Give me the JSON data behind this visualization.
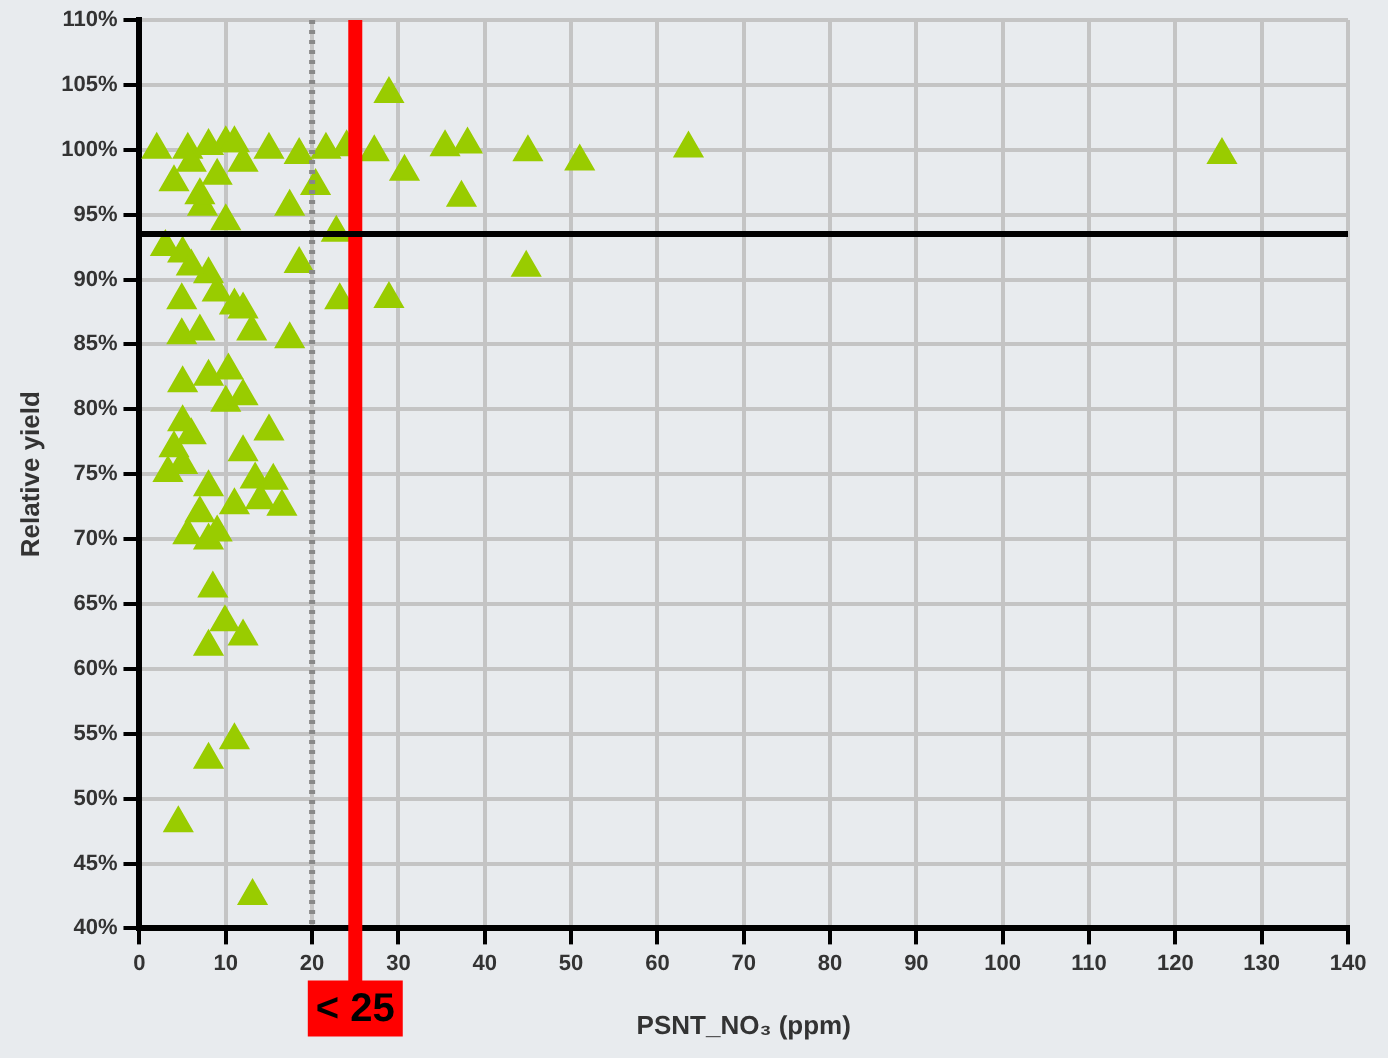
{
  "chart_data": {
    "type": "scatter",
    "xlabel": "PSNT_NO₃ (ppm)",
    "ylabel": "Relative yield",
    "marker": "triangle",
    "grid": true,
    "legend": false,
    "xlim": [
      0,
      140
    ],
    "xticks": [
      0,
      10,
      20,
      30,
      40,
      50,
      60,
      70,
      80,
      90,
      100,
      110,
      120,
      130,
      140
    ],
    "ylim": [
      40,
      110
    ],
    "yticks": [
      {
        "value": 40,
        "label": "40%"
      },
      {
        "value": 45,
        "label": "45%"
      },
      {
        "value": 50,
        "label": "50%"
      },
      {
        "value": 55,
        "label": "55%"
      },
      {
        "value": 60,
        "label": "60%"
      },
      {
        "value": 65,
        "label": "65%"
      },
      {
        "value": 70,
        "label": "70%"
      },
      {
        "value": 75,
        "label": "75%"
      },
      {
        "value": 80,
        "label": "80%"
      },
      {
        "value": 85,
        "label": "85%"
      },
      {
        "value": 90,
        "label": "90%"
      },
      {
        "value": 95,
        "label": "95%"
      },
      {
        "value": 100,
        "label": "100%"
      },
      {
        "value": 105,
        "label": "105%"
      },
      {
        "value": 110,
        "label": "110%"
      }
    ],
    "ref_lines": [
      {
        "axis": "x",
        "value": 20,
        "color": "#888888",
        "line_style": "dotted"
      },
      {
        "axis": "x",
        "value": 25,
        "color": "#ff0000",
        "line_style": "solid",
        "label": "< 25"
      },
      {
        "axis": "y",
        "value": 93.5,
        "color": "#000000",
        "line_style": "solid"
      }
    ],
    "series": [
      {
        "color": "#99cc00",
        "x": [
          28.9,
          2,
          5.6,
          8,
          10,
          15,
          18.5,
          21.6,
          24,
          27.2,
          35.4,
          38,
          45,
          51,
          63.6,
          30.7,
          37.3,
          125.4,
          7.3,
          17.4,
          20.4,
          22.8,
          44.8,
          18.5,
          23.2,
          28.9,
          4.9,
          4.9,
          12,
          17.4,
          8,
          5,
          10.3,
          5,
          8,
          15,
          12,
          5,
          3.3,
          13.4,
          11,
          5.6,
          8,
          8.5,
          9.9,
          8,
          12,
          11,
          8,
          4.5,
          13.1,
          4,
          6,
          9,
          11,
          7,
          10,
          12,
          3,
          6,
          9,
          11,
          13,
          7,
          10,
          12,
          6,
          8,
          4,
          7,
          9,
          14,
          15.5,
          16.5,
          5
        ],
        "values": [
          104.3,
          100,
          100,
          100.3,
          100.5,
          100,
          99.6,
          100,
          100.2,
          99.8,
          100.2,
          100.4,
          99.8,
          99.1,
          100.1,
          98.3,
          96.3,
          99.6,
          95.6,
          95.6,
          97.2,
          93.6,
          90.9,
          91.2,
          88.4,
          88.5,
          88.4,
          85.7,
          87.7,
          85.4,
          90.4,
          92,
          83,
          82,
          82.5,
          78.3,
          76.7,
          75.7,
          75.1,
          74.6,
          72.6,
          70.3,
          69.9,
          66.2,
          63.6,
          61.7,
          62.5,
          54.5,
          53,
          48.1,
          42.5,
          97.5,
          99,
          98,
          100.5,
          96.5,
          94.5,
          99,
          92.5,
          91,
          89,
          88,
          86,
          86,
          80.5,
          81,
          78,
          74,
          77,
          72,
          70.5,
          73,
          74.5,
          72.5,
          79
        ]
      }
    ]
  }
}
